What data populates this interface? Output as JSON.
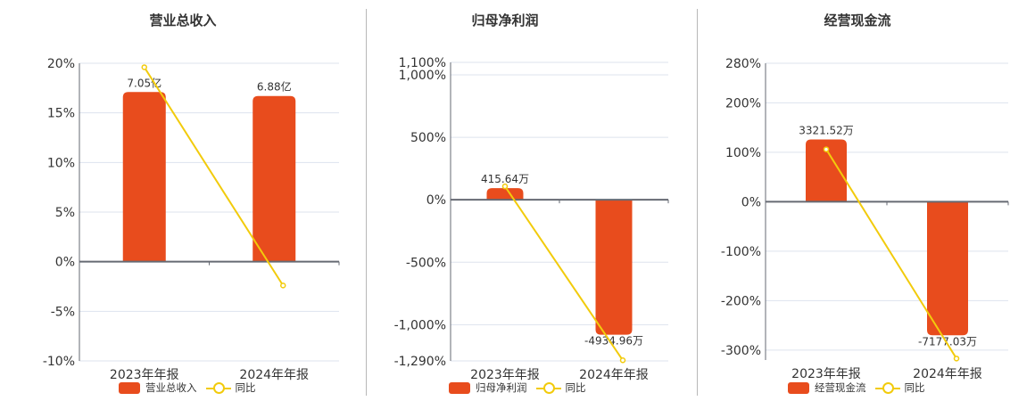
{
  "colors": {
    "bar": "#E84C1D",
    "line": "#F2CB0C",
    "grid": "#dde3ee",
    "axis": "#666a73",
    "text": "#333333"
  },
  "legend_yoy_label": "同比",
  "chart_data": [
    {
      "type": "bar+line",
      "title": "营业总收入",
      "categories": [
        "2023年年报",
        "2024年年报"
      ],
      "series": [
        {
          "name": "营业总收入",
          "type": "bar",
          "values_pct_axis": [
            17.1,
            16.7
          ],
          "labels": [
            "7.05亿",
            "6.88亿"
          ]
        },
        {
          "name": "同比",
          "type": "line",
          "values": [
            19.6,
            -2.4
          ]
        }
      ],
      "ylabel": "",
      "ylim": [
        -10,
        20
      ],
      "yticks": [
        20,
        15,
        10,
        5,
        0,
        -5,
        -10
      ],
      "ytick_labels": [
        "20%",
        "15%",
        "10%",
        "5%",
        "0%",
        "-5%",
        "-10%"
      ],
      "grid": true,
      "legend_position": "bottom"
    },
    {
      "type": "bar+line",
      "title": "归母净利润",
      "categories": [
        "2023年年报",
        "2024年年报"
      ],
      "series": [
        {
          "name": "归母净利润",
          "type": "bar",
          "values_pct_axis": [
            93,
            -1080
          ],
          "labels": [
            "415.64万",
            "-4934.96万"
          ]
        },
        {
          "name": "同比",
          "type": "line",
          "values": [
            107,
            -1285
          ]
        }
      ],
      "ylabel": "",
      "ylim": [
        -1290,
        1100
      ],
      "yticks": [
        1100,
        1000,
        500,
        0,
        -500,
        -1000,
        -1290
      ],
      "ytick_labels": [
        "1,100%",
        "1,000%",
        "500%",
        "0%",
        "-500%",
        "-1,000%",
        "-1,290%"
      ],
      "grid": true,
      "legend_position": "bottom"
    },
    {
      "type": "bar+line",
      "title": "经营现金流",
      "categories": [
        "2023年年报",
        "2024年年报"
      ],
      "series": [
        {
          "name": "经营现金流",
          "type": "bar",
          "values_pct_axis": [
            126,
            -270
          ],
          "labels": [
            "3321.52万",
            "-7177.03万"
          ]
        },
        {
          "name": "同比",
          "type": "line",
          "values": [
            106,
            -317
          ]
        }
      ],
      "ylabel": "",
      "ylim": [
        -320,
        280
      ],
      "yticks": [
        280,
        200,
        100,
        0,
        -100,
        -200,
        -300
      ],
      "ytick_labels": [
        "280%",
        "200%",
        "100%",
        "0%",
        "-100%",
        "-200%",
        "-300%"
      ],
      "grid": true,
      "legend_position": "bottom"
    }
  ]
}
